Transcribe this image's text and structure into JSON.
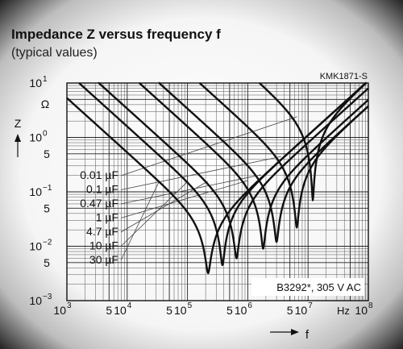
{
  "chart_data": {
    "type": "line",
    "title": "Impedance Z versus frequency f",
    "subtitle": "(typical values)",
    "figure_code": "KMK1871-S",
    "ylabel": "Z",
    "yunit": "Ω",
    "xlabel": "f",
    "xunit": "Hz",
    "x_scale": "log",
    "y_scale": "log",
    "xlim": [
      1000,
      100000000
    ],
    "ylim": [
      0.001,
      10
    ],
    "x_ticks": [
      {
        "value": 1000,
        "label": "10",
        "exp": "3"
      },
      {
        "value": 5000,
        "label": "5"
      },
      {
        "value": 10000,
        "label": "10",
        "exp": "4"
      },
      {
        "value": 50000,
        "label": "5"
      },
      {
        "value": 100000,
        "label": "10",
        "exp": "5"
      },
      {
        "value": 500000,
        "label": "5"
      },
      {
        "value": 1000000,
        "label": "10",
        "exp": "6"
      },
      {
        "value": 5000000,
        "label": "5"
      },
      {
        "value": 10000000,
        "label": "10",
        "exp": "7"
      },
      {
        "value": 100000000,
        "label": "10",
        "exp": "8"
      }
    ],
    "y_ticks": [
      {
        "value": 10,
        "label": "10",
        "exp": "1"
      },
      {
        "value": 1,
        "label": "10",
        "exp": "0"
      },
      {
        "value": 0.5,
        "label": "5"
      },
      {
        "value": 0.1,
        "label": "10",
        "exp": "−1"
      },
      {
        "value": 0.05,
        "label": "5"
      },
      {
        "value": 0.01,
        "label": "10",
        "exp": "−2"
      },
      {
        "value": 0.005,
        "label": "5"
      },
      {
        "value": 0.001,
        "label": "10",
        "exp": "−3"
      }
    ],
    "grid": true,
    "annotation": "B3292*, 305 V AC",
    "series": [
      {
        "name": "0.01 µF",
        "capacitance_uF": 0.01,
        "f_res_hz": 12000000,
        "z_min_ohm": 0.07
      },
      {
        "name": "0.1 µF",
        "capacitance_uF": 0.1,
        "f_res_hz": 6500000,
        "z_min_ohm": 0.022
      },
      {
        "name": "0.47 µF",
        "capacitance_uF": 0.47,
        "f_res_hz": 3000000,
        "z_min_ohm": 0.012
      },
      {
        "name": "1 µF",
        "capacitance_uF": 1,
        "f_res_hz": 1800000,
        "z_min_ohm": 0.009
      },
      {
        "name": "4.7 µF",
        "capacitance_uF": 4.7,
        "f_res_hz": 650000,
        "z_min_ohm": 0.006
      },
      {
        "name": "10 µF",
        "capacitance_uF": 10,
        "f_res_hz": 380000,
        "z_min_ohm": 0.0045
      },
      {
        "name": "30 µF",
        "capacitance_uF": 30,
        "f_res_hz": 220000,
        "z_min_ohm": 0.0032
      }
    ]
  }
}
